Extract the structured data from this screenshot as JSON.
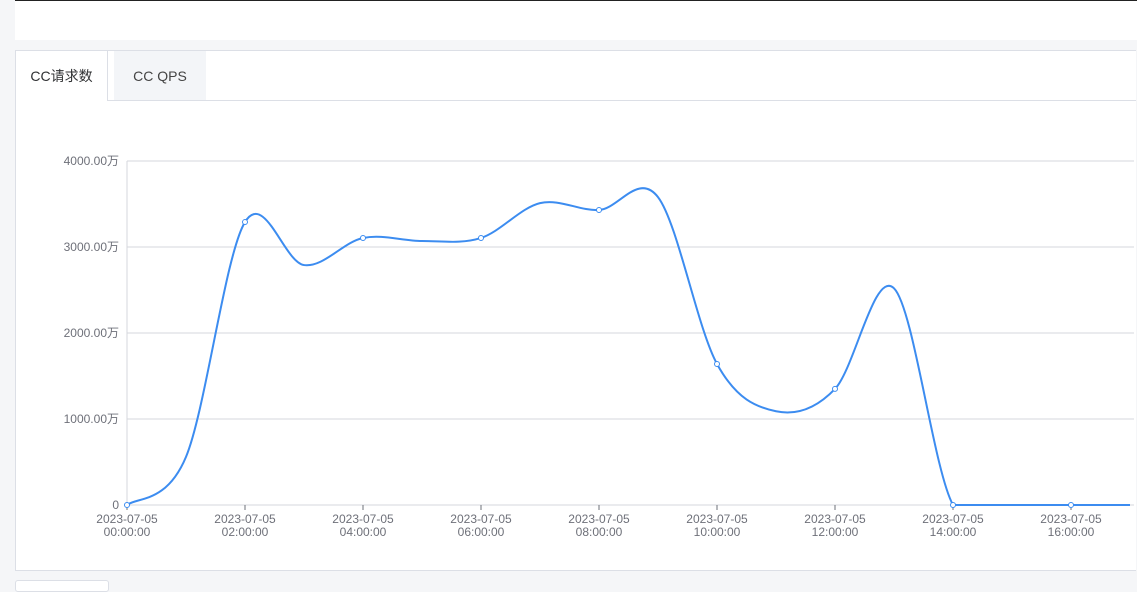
{
  "tabs": [
    "CC请求数",
    "CC QPS"
  ],
  "chart_data": {
    "type": "line",
    "categories": [
      "2023-07-05 00:00:00",
      null,
      "2023-07-05 02:00:00",
      null,
      "2023-07-05 04:00:00",
      null,
      "2023-07-05 06:00:00",
      null,
      "2023-07-05 08:00:00",
      null,
      "2023-07-05 10:00:00",
      null,
      "2023-07-05 12:00:00",
      null,
      "2023-07-05 14:00:00",
      null,
      "2023-07-05 16:00:00",
      null
    ],
    "series": [
      {
        "color": "#3c8cf0",
        "values": [
          0,
          560,
          3290,
          2790,
          3105,
          3070,
          3105,
          3510,
          3430,
          3580,
          1640,
          1090,
          1350,
          2520,
          0,
          0,
          0,
          0
        ]
      }
    ],
    "ylim": [
      0,
      4000
    ],
    "yticks": [
      0,
      {
        "value": 1000,
        "label": "1000.00万"
      },
      {
        "value": 2000,
        "label": "2000.00万"
      },
      {
        "value": 3000,
        "label": "3000.00万"
      },
      {
        "value": 4000,
        "label": "4000.00万"
      }
    ],
    "grid": true
  }
}
